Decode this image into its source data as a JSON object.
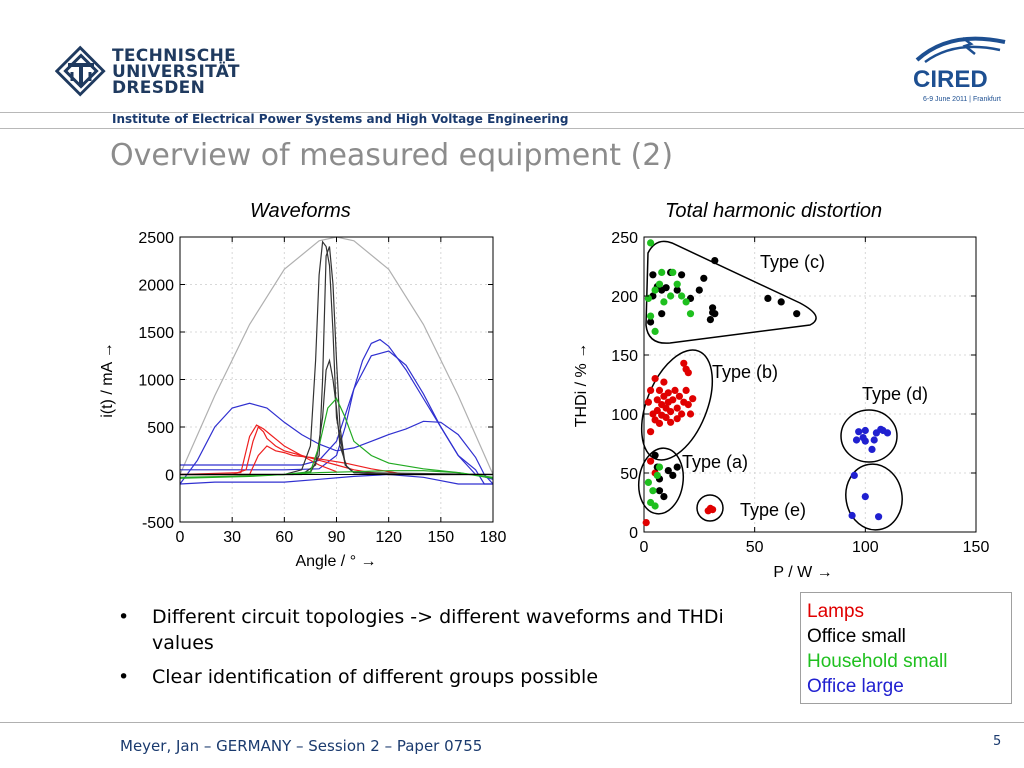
{
  "header": {
    "logo_lines": [
      "TECHNISCHE",
      "UNIVERSITÄT",
      "DRESDEN"
    ],
    "cired_logo_text": "CIRED",
    "cired_logo_sub": "6-9 June 2011 | Frankfurt",
    "institute": "Institute of Electrical Power Systems and High Voltage Engineering"
  },
  "slide": {
    "title": "Overview of measured equipment (2)",
    "bullets": [
      "Different circuit topologies -> different waveforms and THDi values",
      "Clear identification of different groups possible"
    ],
    "legend": [
      {
        "label": "Lamps",
        "color": "#e00000"
      },
      {
        "label": "Office small",
        "color": "#000000"
      },
      {
        "label": "Household small",
        "color": "#1fc01f"
      },
      {
        "label": "Office large",
        "color": "#2020d0"
      }
    ]
  },
  "footer": {
    "text": "Meyer, Jan – GERMANY – Session 2 – Paper 0755",
    "page": "5"
  },
  "chart_data": [
    {
      "type": "line",
      "title": "Waveforms",
      "xlabel": "Angle / ° →",
      "ylabel": "i(t) / mA →",
      "xlim": [
        0,
        180
      ],
      "ylim": [
        -500,
        2500
      ],
      "xticks": [
        "0",
        "30",
        "60",
        "90",
        "120",
        "150",
        "180"
      ],
      "yticks": [
        "-500",
        "0",
        "500",
        "1000",
        "1500",
        "2000",
        "2500"
      ],
      "series": [
        {
          "color": "#b0b0b0",
          "x": [
            0,
            20,
            40,
            60,
            80,
            90,
            100,
            120,
            140,
            160,
            180
          ],
          "y": [
            0,
            830,
            1580,
            2160,
            2460,
            2500,
            2460,
            2160,
            1580,
            830,
            0
          ]
        },
        {
          "color": "#3030d0",
          "x": [
            0,
            10,
            20,
            30,
            40,
            50,
            60,
            70,
            80,
            90,
            100,
            110,
            120,
            130,
            140,
            150,
            160,
            170,
            175,
            180
          ],
          "y": [
            -100,
            150,
            500,
            700,
            750,
            700,
            550,
            420,
            320,
            250,
            280,
            350,
            420,
            480,
            560,
            550,
            420,
            180,
            0,
            -100
          ]
        },
        {
          "color": "#3030d0",
          "x": [
            0,
            20,
            40,
            60,
            70,
            80,
            90,
            100,
            105,
            110,
            115,
            120,
            130,
            140,
            150,
            160,
            170,
            175,
            180
          ],
          "y": [
            100,
            100,
            100,
            100,
            100,
            150,
            350,
            900,
            1200,
            1380,
            1420,
            1350,
            1100,
            800,
            500,
            200,
            50,
            -100,
            -100
          ]
        },
        {
          "color": "#3030d0",
          "x": [
            0,
            20,
            40,
            60,
            80,
            90,
            95,
            100,
            110,
            120,
            130,
            140,
            150,
            160,
            170,
            180
          ],
          "y": [
            50,
            50,
            50,
            50,
            60,
            200,
            500,
            900,
            1250,
            1300,
            1150,
            850,
            500,
            200,
            0,
            -50
          ]
        },
        {
          "color": "#3030d0",
          "x": [
            0,
            20,
            40,
            60,
            80,
            100,
            120,
            140,
            160,
            170,
            180
          ],
          "y": [
            -100,
            -80,
            -80,
            -80,
            -50,
            -20,
            0,
            -30,
            -100,
            -100,
            -100
          ]
        },
        {
          "color": "#ee2020",
          "x": [
            0,
            30,
            38,
            42,
            45,
            48,
            50,
            55,
            60,
            70,
            80,
            90,
            100,
            110,
            120
          ],
          "y": [
            0,
            0,
            50,
            350,
            500,
            450,
            380,
            300,
            250,
            200,
            150,
            100,
            50,
            20,
            0
          ]
        },
        {
          "color": "#ee2020",
          "x": [
            0,
            35,
            40,
            44,
            48,
            52,
            56,
            60,
            70,
            80,
            90
          ],
          "y": [
            0,
            20,
            400,
            520,
            480,
            420,
            360,
            300,
            200,
            100,
            30
          ]
        },
        {
          "color": "#ee2020",
          "x": [
            0,
            40,
            45,
            50,
            55,
            60,
            65,
            75,
            85,
            95,
            110,
            130
          ],
          "y": [
            0,
            0,
            200,
            300,
            250,
            230,
            200,
            180,
            150,
            120,
            60,
            0
          ]
        },
        {
          "color": "#333333",
          "x": [
            0,
            60,
            70,
            75,
            78,
            80,
            82,
            84,
            86,
            88,
            90,
            95,
            100,
            120,
            180
          ],
          "y": [
            0,
            0,
            50,
            300,
            1200,
            2100,
            2450,
            2400,
            2200,
            1500,
            600,
            100,
            20,
            0,
            0
          ]
        },
        {
          "color": "#333333",
          "x": [
            0,
            65,
            75,
            80,
            82,
            84,
            86,
            88,
            90,
            92,
            95,
            100,
            120,
            180
          ],
          "y": [
            0,
            0,
            20,
            200,
            1000,
            2300,
            2400,
            2000,
            1200,
            500,
            100,
            20,
            0,
            0
          ]
        },
        {
          "color": "#333333",
          "x": [
            0,
            70,
            78,
            82,
            84,
            86,
            88,
            90,
            92,
            96,
            100,
            180
          ],
          "y": [
            0,
            0,
            100,
            600,
            1100,
            1200,
            1000,
            700,
            300,
            80,
            20,
            0
          ]
        },
        {
          "color": "#22aa22",
          "x": [
            0,
            30,
            60,
            75,
            80,
            85,
            90,
            95,
            100,
            110,
            120,
            140,
            160,
            180
          ],
          "y": [
            -30,
            -20,
            0,
            30,
            300,
            700,
            800,
            600,
            350,
            200,
            120,
            60,
            20,
            -30
          ]
        },
        {
          "color": "#22aa22",
          "x": [
            0,
            40,
            80,
            100,
            120,
            140,
            160,
            180
          ],
          "y": [
            -40,
            -20,
            20,
            30,
            40,
            40,
            20,
            -40
          ]
        }
      ]
    },
    {
      "type": "scatter",
      "title": "Total harmonic distortion",
      "xlabel": "P / W →",
      "ylabel": "THDi / % →",
      "xlim": [
        0,
        150
      ],
      "ylim": [
        0,
        250
      ],
      "xticks": [
        "0",
        "50",
        "100",
        "150"
      ],
      "yticks": [
        "0",
        "50",
        "100",
        "150",
        "200",
        "250"
      ],
      "annotations": [
        "Type (c)",
        "Type (b)",
        "Type (d)",
        "Type (a)",
        "Type (e)"
      ],
      "series": [
        {
          "color": "#e00000",
          "points": [
            [
              2,
              110
            ],
            [
              3,
              120
            ],
            [
              3,
              85
            ],
            [
              4,
              100
            ],
            [
              5,
              130
            ],
            [
              5,
              95
            ],
            [
              6,
              112
            ],
            [
              6,
              103
            ],
            [
              7,
              120
            ],
            [
              7,
              92
            ],
            [
              8,
              108
            ],
            [
              8,
              99
            ],
            [
              9,
              115
            ],
            [
              9,
              127
            ],
            [
              10,
              105
            ],
            [
              10,
              97
            ],
            [
              11,
              118
            ],
            [
              11,
              110
            ],
            [
              12,
              102
            ],
            [
              12,
              93
            ],
            [
              13,
              112
            ],
            [
              14,
              120
            ],
            [
              15,
              105
            ],
            [
              15,
              96
            ],
            [
              16,
              115
            ],
            [
              17,
              100
            ],
            [
              18,
              110
            ],
            [
              19,
              120
            ],
            [
              20,
              108
            ],
            [
              21,
              100
            ],
            [
              22,
              113
            ],
            [
              18,
              143
            ],
            [
              19,
              138
            ],
            [
              20,
              135
            ],
            [
              3,
              60
            ],
            [
              5,
              50
            ],
            [
              1,
              8
            ],
            [
              29,
              18
            ],
            [
              30,
              20
            ],
            [
              31,
              19
            ]
          ]
        },
        {
          "color": "#000000",
          "points": [
            [
              3,
              178
            ],
            [
              4,
              200
            ],
            [
              4,
              218
            ],
            [
              6,
              208
            ],
            [
              8,
              205
            ],
            [
              8,
              185
            ],
            [
              10,
              207
            ],
            [
              12,
              220
            ],
            [
              15,
              205
            ],
            [
              17,
              218
            ],
            [
              21,
              198
            ],
            [
              25,
              205
            ],
            [
              27,
              215
            ],
            [
              30,
              180
            ],
            [
              31,
              186
            ],
            [
              31,
              190
            ],
            [
              32,
              230
            ],
            [
              32,
              185
            ],
            [
              56,
              198
            ],
            [
              62,
              195
            ],
            [
              69,
              185
            ],
            [
              5,
              65
            ],
            [
              6,
              55
            ],
            [
              7,
              45
            ],
            [
              11,
              52
            ],
            [
              13,
              48
            ],
            [
              15,
              55
            ],
            [
              7,
              35
            ],
            [
              9,
              30
            ]
          ]
        },
        {
          "color": "#1fc01f",
          "points": [
            [
              3,
              245
            ],
            [
              2,
              198
            ],
            [
              3,
              183
            ],
            [
              5,
              205
            ],
            [
              5,
              170
            ],
            [
              7,
              210
            ],
            [
              8,
              220
            ],
            [
              9,
              195
            ],
            [
              12,
              200
            ],
            [
              13,
              220
            ],
            [
              15,
              210
            ],
            [
              17,
              200
            ],
            [
              19,
              195
            ],
            [
              21,
              185
            ],
            [
              2,
              42
            ],
            [
              4,
              35
            ],
            [
              3,
              25
            ],
            [
              5,
              22
            ],
            [
              7,
              55
            ],
            [
              6,
              48
            ]
          ]
        },
        {
          "color": "#2020d0",
          "points": [
            [
              97,
              85
            ],
            [
              99,
              80
            ],
            [
              100,
              86
            ],
            [
              104,
              78
            ],
            [
              105,
              84
            ],
            [
              107,
              87
            ],
            [
              108,
              86
            ],
            [
              110,
              84
            ],
            [
              96,
              78
            ],
            [
              100,
              77
            ],
            [
              103,
              70
            ],
            [
              95,
              48
            ],
            [
              100,
              30
            ],
            [
              106,
              13
            ],
            [
              94,
              14
            ]
          ]
        }
      ]
    }
  ]
}
